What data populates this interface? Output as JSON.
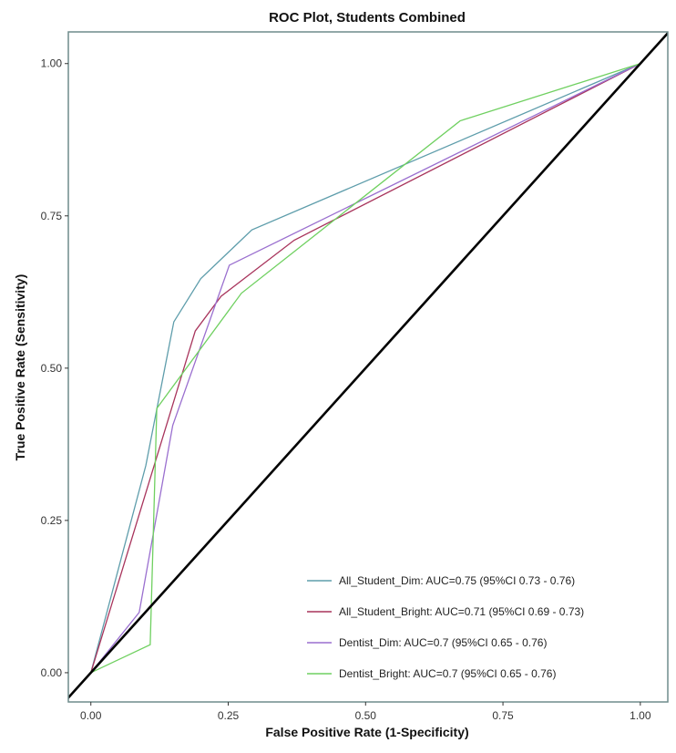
{
  "chart_data": {
    "type": "line",
    "title": "ROC Plot, Students Combined",
    "xlabel": "False Positive Rate (1-Specificity)",
    "ylabel": "True Positive Rate (Sensitivity)",
    "xlim": [
      -0.041,
      1.05
    ],
    "ylim": [
      -0.048,
      1.052
    ],
    "xticks": [
      0,
      0.25,
      0.5,
      0.75,
      1
    ],
    "xtick_labels": [
      "0.00",
      "0.25",
      "0.50",
      "0.75",
      "1.00"
    ],
    "yticks": [
      0,
      0.25,
      0.5,
      0.75,
      1
    ],
    "ytick_labels": [
      "0.00",
      "0.25",
      "0.50",
      "0.75",
      "1.00"
    ],
    "grid": false,
    "legend_position": "bottom-right",
    "reference_line": {
      "type": "diagonal",
      "color": "#000000"
    },
    "border_color": "#6f8c8c",
    "series": [
      {
        "name": "All_Student_Dim: AUC=0.75 (95%CI 0.73 - 0.76)",
        "color": "#5e9dab",
        "x": [
          0,
          0.1,
          0.151,
          0.2,
          0.25,
          0.293,
          1
        ],
        "y": [
          0,
          0.34,
          0.576,
          0.647,
          0.69,
          0.727,
          1
        ]
      },
      {
        "name": "All_Student_Bright: AUC=0.71 (95%CI 0.69 - 0.73)",
        "color": "#a8345c",
        "x": [
          0,
          0.19,
          0.237,
          0.37,
          1
        ],
        "y": [
          0,
          0.561,
          0.618,
          0.71,
          1
        ]
      },
      {
        "name": "Dentist_Dim: AUC=0.7 (95%CI 0.65 - 0.76)",
        "color": "#9a6fcf",
        "x": [
          0,
          0.088,
          0.149,
          0.252,
          1
        ],
        "y": [
          0,
          0.099,
          0.406,
          0.669,
          1
        ]
      },
      {
        "name": "Dentist_Bright: AUC=0.7 (95%CI 0.65 - 0.76)",
        "color": "#6fd060",
        "x": [
          0,
          0.108,
          0.12,
          0.274,
          0.672,
          1
        ],
        "y": [
          0,
          0.046,
          0.434,
          0.623,
          0.906,
          1
        ]
      }
    ]
  }
}
